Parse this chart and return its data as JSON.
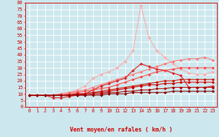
{
  "background_color": "#cce8ee",
  "grid_color": "#ffffff",
  "xlabel": "Vent moyen/en rafales ( km/h )",
  "x_values": [
    0,
    1,
    2,
    3,
    4,
    5,
    6,
    7,
    8,
    9,
    10,
    11,
    12,
    13,
    14,
    15,
    16,
    17,
    18,
    19,
    20,
    21,
    22,
    23
  ],
  "yticks": [
    0,
    5,
    10,
    15,
    20,
    25,
    30,
    35,
    40,
    45,
    50,
    55,
    60,
    65,
    70,
    75,
    80
  ],
  "series": [
    {
      "color": "#ffaaaa",
      "linewidth": 0.8,
      "marker": "D",
      "markersize": 2,
      "data": [
        9,
        9,
        9,
        9,
        10,
        11,
        13,
        16,
        22,
        25,
        27,
        30,
        35,
        43,
        78,
        53,
        43,
        38,
        33,
        29,
        26,
        25,
        25,
        27
      ]
    },
    {
      "color": "#ff7777",
      "linewidth": 0.8,
      "marker": "D",
      "markersize": 2,
      "data": [
        9,
        9,
        9,
        9,
        10,
        11,
        12,
        13,
        15,
        17,
        19,
        21,
        23,
        25,
        27,
        29,
        31,
        33,
        35,
        36,
        37,
        37,
        38,
        36
      ]
    },
    {
      "color": "#dd2222",
      "linewidth": 0.9,
      "marker": "D",
      "markersize": 2,
      "data": [
        9,
        9,
        9,
        7,
        7,
        8,
        9,
        10,
        13,
        16,
        18,
        20,
        22,
        28,
        33,
        31,
        29,
        28,
        26,
        24,
        15,
        15,
        15,
        16
      ]
    },
    {
      "color": "#ff4444",
      "linewidth": 0.8,
      "marker": "D",
      "markersize": 2,
      "data": [
        9,
        9,
        9,
        9,
        9,
        10,
        11,
        12,
        13,
        14,
        15,
        17,
        19,
        21,
        23,
        25,
        27,
        28,
        29,
        30,
        30,
        30,
        30,
        30
      ]
    },
    {
      "color": "#cc1100",
      "linewidth": 0.8,
      "marker": "D",
      "markersize": 2,
      "data": [
        9,
        9,
        9,
        9,
        9,
        9,
        10,
        10,
        11,
        12,
        13,
        14,
        15,
        16,
        17,
        18,
        19,
        20,
        20,
        21,
        21,
        21,
        21,
        21
      ]
    },
    {
      "color": "#cc0000",
      "linewidth": 0.8,
      "marker": "D",
      "markersize": 2,
      "data": [
        9,
        9,
        9,
        9,
        9,
        9,
        10,
        10,
        11,
        11,
        12,
        13,
        14,
        15,
        16,
        17,
        17,
        18,
        18,
        19,
        19,
        19,
        19,
        19
      ]
    },
    {
      "color": "#aa0000",
      "linewidth": 0.8,
      "marker": "D",
      "markersize": 2,
      "data": [
        9,
        9,
        9,
        9,
        9,
        9,
        9,
        9,
        10,
        10,
        11,
        11,
        12,
        12,
        13,
        13,
        14,
        14,
        15,
        15,
        15,
        15,
        15,
        15
      ]
    },
    {
      "color": "#880000",
      "linewidth": 0.8,
      "marker": "D",
      "markersize": 2,
      "data": [
        9,
        9,
        9,
        9,
        9,
        9,
        9,
        9,
        9,
        9,
        10,
        10,
        10,
        11,
        11,
        11,
        11,
        11,
        12,
        12,
        12,
        12,
        12,
        12
      ]
    }
  ],
  "wind_angles": [
    225,
    315,
    315,
    180,
    180,
    180,
    180,
    180,
    45,
    45,
    45,
    45,
    45,
    45,
    45,
    45,
    45,
    45,
    45,
    45,
    315,
    315,
    135,
    135
  ],
  "tick_fontsize": 5,
  "axis_fontsize": 6,
  "arrow_color": "#cc0000"
}
